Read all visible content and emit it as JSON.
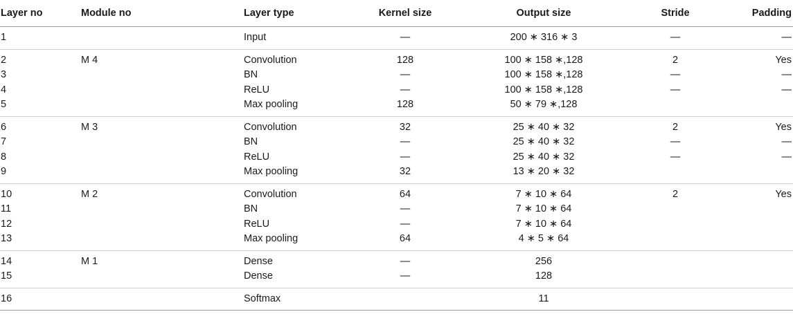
{
  "headers": [
    "Layer no",
    "Module no",
    "Layer type",
    "Kernel size",
    "Output size",
    "Stride",
    "Padding"
  ],
  "rows": [
    {
      "layer": "1",
      "module": "",
      "type": "Input",
      "kernel": "—",
      "output": "200 ∗ 316 ∗ 3",
      "stride": "—",
      "padding": "—"
    },
    {
      "layer": "2",
      "module": "M 4",
      "type": "Convolution",
      "kernel": "128",
      "output": "100 ∗ 158 ∗,128",
      "stride": "2",
      "padding": "Yes"
    },
    {
      "layer": "3",
      "module": "",
      "type": "BN",
      "kernel": "—",
      "output": "100 ∗ 158 ∗,128",
      "stride": "—",
      "padding": "—"
    },
    {
      "layer": "4",
      "module": "",
      "type": "ReLU",
      "kernel": "—",
      "output": "100 ∗ 158 ∗,128",
      "stride": "—",
      "padding": "—"
    },
    {
      "layer": "5",
      "module": "",
      "type": "Max pooling",
      "kernel": "128",
      "output": "50 ∗ 79 ∗,128",
      "stride": "",
      "padding": ""
    },
    {
      "layer": "6",
      "module": "M 3",
      "type": "Convolution",
      "kernel": "32",
      "output": "25 ∗ 40 ∗ 32",
      "stride": "2",
      "padding": "Yes"
    },
    {
      "layer": "7",
      "module": "",
      "type": "BN",
      "kernel": "—",
      "output": "25 ∗ 40 ∗ 32",
      "stride": "—",
      "padding": "—"
    },
    {
      "layer": "8",
      "module": "",
      "type": "ReLU",
      "kernel": "—",
      "output": "25 ∗ 40 ∗ 32",
      "stride": "—",
      "padding": "—"
    },
    {
      "layer": "9",
      "module": "",
      "type": "Max pooling",
      "kernel": "32",
      "output": "13 ∗ 20 ∗ 32",
      "stride": "",
      "padding": ""
    },
    {
      "layer": "10",
      "module": "M 2",
      "type": "Convolution",
      "kernel": "64",
      "output": "7 ∗ 10 ∗ 64",
      "stride": "2",
      "padding": "Yes"
    },
    {
      "layer": "11",
      "module": "",
      "type": "BN",
      "kernel": "—",
      "output": "7 ∗ 10 ∗ 64",
      "stride": "",
      "padding": ""
    },
    {
      "layer": "12",
      "module": "",
      "type": "ReLU",
      "kernel": "—",
      "output": "7 ∗ 10 ∗ 64",
      "stride": "",
      "padding": ""
    },
    {
      "layer": "13",
      "module": "",
      "type": "Max pooling",
      "kernel": "64",
      "output": "4 ∗ 5 ∗ 64",
      "stride": "",
      "padding": ""
    },
    {
      "layer": "14",
      "module": "M 1",
      "type": "Dense",
      "kernel": "—",
      "output": "256",
      "stride": "",
      "padding": ""
    },
    {
      "layer": "15",
      "module": "",
      "type": "Dense",
      "kernel": "—",
      "output": "128",
      "stride": "",
      "padding": ""
    },
    {
      "layer": "16",
      "module": "",
      "type": "Softmax",
      "kernel": "",
      "output": "11",
      "stride": "",
      "padding": ""
    }
  ]
}
